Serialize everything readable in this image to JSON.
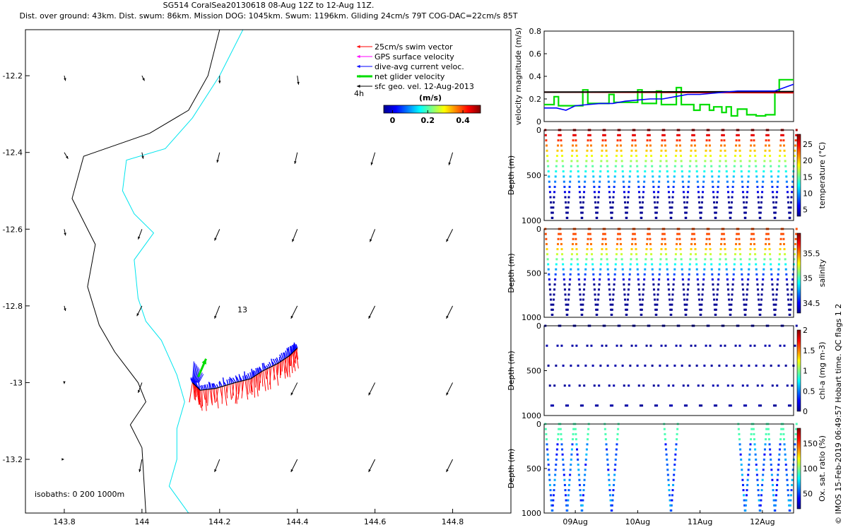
{
  "header": {
    "title": "SG514 CoralSea20130618 08-Aug 12Z to 12-Aug 11Z.",
    "subtitle": "Dist. over ground: 43km. Dist. swum: 86km. Mission DOG: 1045km. Swum: 1196km. Gliding 24cm/s 79T COG-DAC=22cm/s 85T"
  },
  "credit": "© IMOS 15-Feb-2019 06:49:57 Hobart time. QC flags 1 2",
  "colors": {
    "swim": "#ff0000",
    "gps": "#ff00ff",
    "dac": "#0000ff",
    "net": "#00dd00",
    "sfc": "#000000",
    "isobath200": "#000000",
    "isobath1000": "#00e5ee"
  },
  "chart_data": [
    {
      "type": "map",
      "xlim": [
        143.7,
        144.95
      ],
      "ylim": [
        -13.34,
        -12.08
      ],
      "xticks": [
        "143.8",
        "144",
        "144.2",
        "144.4",
        "144.6",
        "144.8"
      ],
      "yticks": [
        "-12.2",
        "-12.4",
        "-12.6",
        "-12.8",
        "-13",
        "-13.2"
      ],
      "legend": {
        "placement": "top-right",
        "entries": [
          {
            "label": "25cm/s swim vector",
            "color": "#ff0000"
          },
          {
            "label": "GPS surface velocity",
            "color": "#ff00ff"
          },
          {
            "label": "dive-avg current veloc.",
            "color": "#0000ff"
          },
          {
            "label": "net glider velocity",
            "color": "#00dd00"
          },
          {
            "label": "sfc geo. vel. 12-Aug-2013",
            "color": "#000000"
          }
        ],
        "time_label": "4h",
        "colorbar_title": "(m/s)",
        "colorbar_ticks": [
          "0",
          "0.2",
          "0.4"
        ],
        "colorbar_range": [
          -0.05,
          0.5
        ]
      },
      "annotation": "13",
      "isobaths_label": "isobaths: 0   200  1000m",
      "isobath_200": [
        [
          144.2,
          -12.08
        ],
        [
          144.17,
          -12.2
        ],
        [
          144.12,
          -12.29
        ],
        [
          144.02,
          -12.35
        ],
        [
          143.85,
          -12.41
        ],
        [
          143.82,
          -12.52
        ],
        [
          143.85,
          -12.58
        ],
        [
          143.88,
          -12.64
        ],
        [
          143.86,
          -12.75
        ],
        [
          143.89,
          -12.85
        ],
        [
          143.93,
          -12.92
        ],
        [
          143.99,
          -13.0
        ],
        [
          144.01,
          -13.05
        ],
        [
          143.97,
          -13.11
        ],
        [
          144.0,
          -13.17
        ],
        [
          144.01,
          -13.34
        ]
      ],
      "isobath_1000": [
        [
          144.26,
          -12.08
        ],
        [
          144.2,
          -12.2
        ],
        [
          144.13,
          -12.31
        ],
        [
          144.06,
          -12.39
        ],
        [
          143.96,
          -12.42
        ],
        [
          143.95,
          -12.5
        ],
        [
          143.98,
          -12.56
        ],
        [
          144.03,
          -12.61
        ],
        [
          143.98,
          -12.68
        ],
        [
          143.99,
          -12.78
        ],
        [
          144.01,
          -12.84
        ],
        [
          144.05,
          -12.89
        ],
        [
          144.09,
          -12.98
        ],
        [
          144.11,
          -13.05
        ],
        [
          144.09,
          -13.12
        ],
        [
          144.09,
          -13.2
        ],
        [
          144.07,
          -13.27
        ],
        [
          144.12,
          -13.34
        ]
      ],
      "glider_track": [
        [
          144.13,
          -13.0
        ],
        [
          144.15,
          -13.02
        ],
        [
          144.19,
          -13.015
        ],
        [
          144.24,
          -13.0
        ],
        [
          144.28,
          -12.99
        ],
        [
          144.31,
          -12.97
        ],
        [
          144.35,
          -12.95
        ],
        [
          144.38,
          -12.93
        ],
        [
          144.4,
          -12.91
        ]
      ],
      "net_velocity_vector": {
        "start": [
          144.145,
          -12.985
        ],
        "end": [
          144.165,
          -12.938
        ]
      },
      "sfc_geo_velocity": {
        "lon": [
          143.8,
          144.0,
          144.2,
          144.4,
          144.6,
          144.8
        ],
        "lat": [
          -12.2,
          -12.4,
          -12.6,
          -12.8,
          -13.0,
          -13.2
        ],
        "u": [
          [
            0.01,
            0.02,
            0.0,
            0.01,
            null,
            null
          ],
          [
            0.03,
            0.01,
            -0.02,
            -0.02,
            -0.03,
            -0.03
          ],
          [
            0.01,
            -0.03,
            -0.04,
            -0.04,
            -0.04,
            -0.05
          ],
          [
            0.01,
            -0.04,
            -0.04,
            -0.05,
            -0.05,
            -0.05
          ],
          [
            0.0,
            -0.03,
            null,
            -0.05,
            -0.05,
            -0.05
          ],
          [
            0.0,
            -0.02,
            -0.04,
            -0.05,
            -0.05,
            -0.05
          ]
        ],
        "v": [
          [
            -0.04,
            -0.04,
            -0.06,
            -0.07,
            null,
            null
          ],
          [
            -0.05,
            -0.05,
            -0.08,
            -0.09,
            -0.1,
            -0.1
          ],
          [
            -0.05,
            -0.08,
            -0.09,
            -0.1,
            -0.1,
            -0.1
          ],
          [
            -0.04,
            -0.08,
            -0.1,
            -0.1,
            -0.1,
            -0.1
          ],
          [
            -0.01,
            -0.08,
            null,
            -0.1,
            -0.1,
            -0.1
          ],
          [
            0.0,
            -0.1,
            -0.1,
            -0.1,
            -0.1,
            -0.1
          ]
        ]
      }
    },
    {
      "type": "line",
      "ylabel": "velocity magnitude (m/s)",
      "ylim": [
        0,
        0.8
      ],
      "yticks": [
        "0",
        "0.2",
        "0.4",
        "0.6",
        "0.8"
      ],
      "x_range_days": [
        8.5,
        12.5
      ],
      "series": [
        {
          "color": "#00dd00",
          "x": [
            8.5,
            8.66,
            8.66,
            8.73,
            8.73,
            9.12,
            9.12,
            9.2,
            9.2,
            9.54,
            9.54,
            9.62,
            9.62,
            10.0,
            10.0,
            10.07,
            10.07,
            10.3,
            10.3,
            10.38,
            10.38,
            10.62,
            10.62,
            10.7,
            10.7,
            10.9,
            10.9,
            11.0,
            11.0,
            11.15,
            11.15,
            11.22,
            11.22,
            11.35,
            11.35,
            11.42,
            11.42,
            11.5,
            11.5,
            11.6,
            11.6,
            11.75,
            11.75,
            11.9,
            11.9,
            12.05,
            12.05,
            12.2,
            12.2,
            12.27,
            12.27,
            12.5
          ],
          "y": [
            0.15,
            0.15,
            0.22,
            0.22,
            0.14,
            0.14,
            0.28,
            0.28,
            0.16,
            0.16,
            0.24,
            0.24,
            0.17,
            0.17,
            0.28,
            0.28,
            0.16,
            0.16,
            0.27,
            0.27,
            0.15,
            0.15,
            0.3,
            0.3,
            0.15,
            0.15,
            0.1,
            0.1,
            0.15,
            0.15,
            0.1,
            0.1,
            0.13,
            0.13,
            0.08,
            0.08,
            0.13,
            0.13,
            0.05,
            0.05,
            0.11,
            0.11,
            0.06,
            0.06,
            0.05,
            0.05,
            0.06,
            0.06,
            0.26,
            0.26,
            0.37,
            0.37
          ]
        },
        {
          "color": "#ff0000",
          "x": [
            8.5,
            12.5
          ],
          "y": [
            0.26,
            0.255
          ]
        },
        {
          "color": "#000000",
          "x": [
            8.5,
            12.5
          ],
          "y": [
            0.26,
            0.265
          ]
        },
        {
          "color": "#0000ff",
          "x": [
            8.5,
            8.7,
            8.85,
            9.0,
            9.2,
            9.4,
            9.6,
            9.8,
            10.0,
            10.2,
            10.4,
            10.6,
            10.8,
            11.0,
            11.2,
            11.4,
            11.6,
            11.8,
            12.0,
            12.2,
            12.35,
            12.5
          ],
          "y": [
            0.12,
            0.12,
            0.1,
            0.14,
            0.15,
            0.16,
            0.16,
            0.18,
            0.19,
            0.2,
            0.2,
            0.22,
            0.24,
            0.24,
            0.25,
            0.26,
            0.27,
            0.27,
            0.27,
            0.27,
            0.3,
            0.33
          ]
        }
      ]
    },
    {
      "type": "scatter",
      "ylabel": "Depth (m)",
      "clabel": "temperature (°C)",
      "cticks": [
        "5",
        "10",
        "15",
        "20",
        "25"
      ],
      "crange": [
        3,
        28
      ],
      "colormap": "jet",
      "yticks": [
        "0",
        "500",
        "1000"
      ],
      "ylim": [
        0,
        1000
      ],
      "profile": "temp"
    },
    {
      "type": "scatter",
      "ylabel": "Depth (m)",
      "clabel": "salinity",
      "cticks": [
        "34.5",
        "35",
        "35.5"
      ],
      "crange": [
        34.3,
        35.9
      ],
      "colormap": "jet",
      "yticks": [
        "0",
        "500",
        "1000"
      ],
      "ylim": [
        0,
        1000
      ],
      "profile": "sal"
    },
    {
      "type": "scatter",
      "ylabel": "Depth (m)",
      "clabel": "chl-a (mg m-3)",
      "cticks": [
        "0",
        "0.5",
        "1",
        "1.5",
        "2"
      ],
      "crange": [
        0,
        2
      ],
      "colormap": "jet",
      "yticks": [
        "0",
        "500",
        "1000"
      ],
      "ylim": [
        0,
        1000
      ],
      "profile": "chl"
    },
    {
      "type": "scatter",
      "ylabel": "Depth (m)",
      "clabel": "Ox. sat. ratio (%)",
      "cticks": [
        "50",
        "100",
        "150"
      ],
      "crange": [
        20,
        180
      ],
      "colormap": "jet",
      "yticks": [
        "0",
        "500",
        "1000"
      ],
      "ylim": [
        0,
        1000
      ],
      "profile": "oxy",
      "xticks": [
        "09Aug",
        "10Aug",
        "11Aug",
        "12Aug"
      ],
      "xtick_days": [
        9,
        10,
        11,
        12
      ]
    }
  ]
}
